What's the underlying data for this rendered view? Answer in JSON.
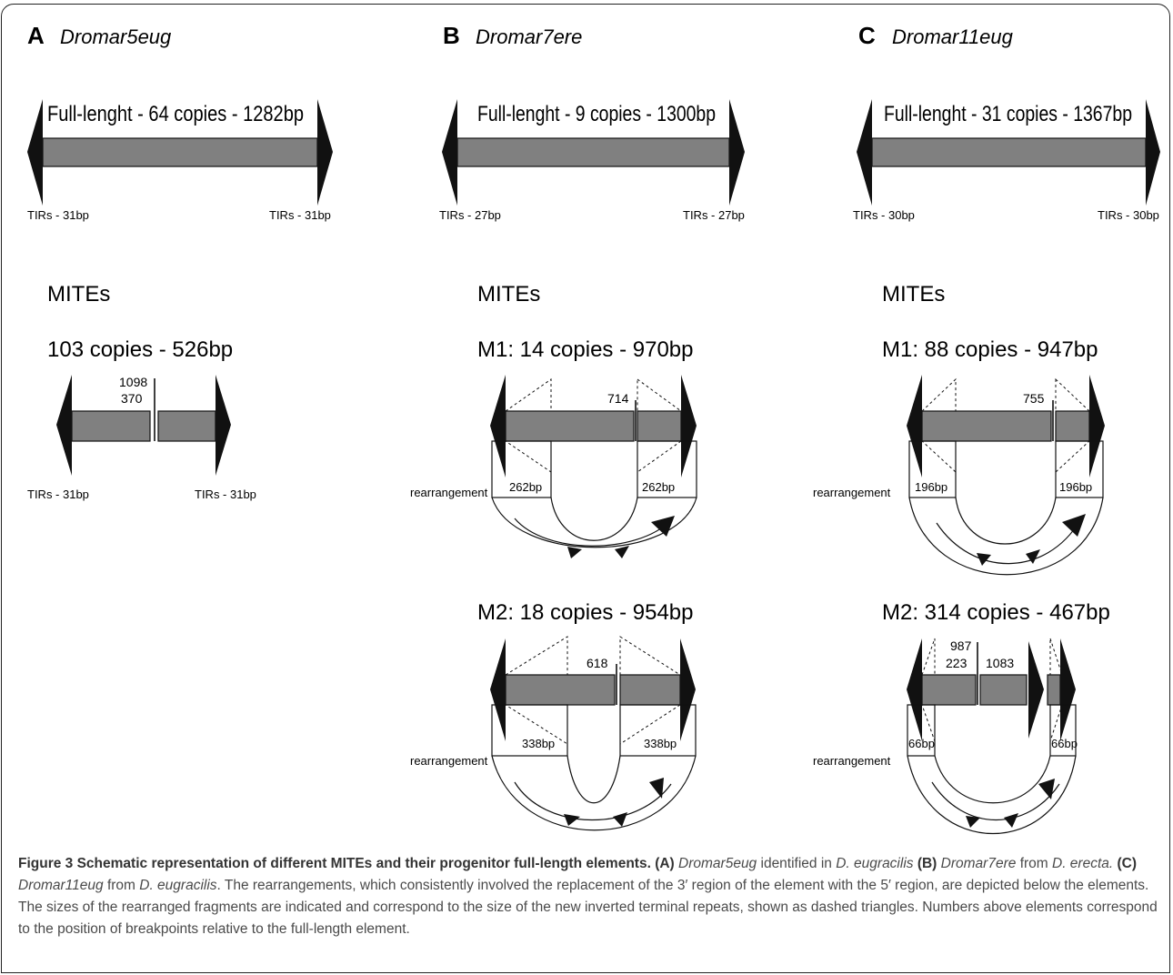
{
  "panels": [
    {
      "letter": "A",
      "name": "Dromar5eug",
      "full_length": "Full-lenght - 64 copies - 1282bp",
      "tir_left": "TIRs - 31bp",
      "tir_right": "TIRs - 31bp",
      "mites_label": "MITEs",
      "m1_title": "103 copies - 526bp",
      "m1_breakpoint_top": "1098",
      "m1_breakpoint_bottom": "370",
      "m1_tir_left": "TIRs - 31bp",
      "m1_tir_right": "TIRs - 31bp"
    },
    {
      "letter": "B",
      "name": "Dromar7ere",
      "full_length": "Full-lenght - 9 copies - 1300bp",
      "tir_left": "TIRs - 27bp",
      "tir_right": "TIRs - 27bp",
      "mites_label": "MITEs",
      "m1_title": "M1: 14 copies - 970bp",
      "m1_breakpoint": "714",
      "m1_fragment_left": "262bp",
      "m1_fragment_right": "262bp",
      "m2_title": "M2: 18 copies - 954bp",
      "m2_breakpoint": "618",
      "m2_fragment_left": "338bp",
      "m2_fragment_right": "338bp",
      "rearrangement_label": "rearrangement"
    },
    {
      "letter": "C",
      "name": "Dromar11eug",
      "full_length": "Full-lenght - 31 copies - 1367bp",
      "tir_left": "TIRs - 30bp",
      "tir_right": "TIRs - 30bp",
      "mites_label": "MITEs",
      "m1_title": "M1: 88 copies - 947bp",
      "m1_breakpoint": "755",
      "m1_fragment_left": "196bp",
      "m1_fragment_right": "196bp",
      "m2_title": "M2: 314 copies - 467bp",
      "m2_breakpoint_top": "987",
      "m2_breakpoint_bottom": "223",
      "m2_breakpoint_2": "1083",
      "m2_fragment_left": "66bp",
      "m2_fragment_right": "66bp",
      "rearrangement_label": "rearrangement"
    }
  ],
  "caption": {
    "title": "Figure 3 Schematic representation of different MITEs and their progenitor full-length elements.",
    "a_label": "(A)",
    "a_elem": "Dromar5eug",
    "a_text": "identified in",
    "a_species": "D. eugracilis",
    "b_label": "(B)",
    "b_elem": "Dromar7ere",
    "b_text": "from",
    "b_species": "D. erecta.",
    "c_label": "(C)",
    "c_elem": "Dromar11eug",
    "c_text": "from",
    "c_species": "D. eugracilis",
    "body": ". The rearrangements, which consistently involved the replacement of the 3′ region of the element with the 5′ region, are depicted below the elements. The sizes of the rearranged fragments are indicated and correspond to the size of the new inverted terminal repeats, shown as dashed triangles. Numbers above elements correspond to the position of breakpoints relative to the full-length element."
  }
}
